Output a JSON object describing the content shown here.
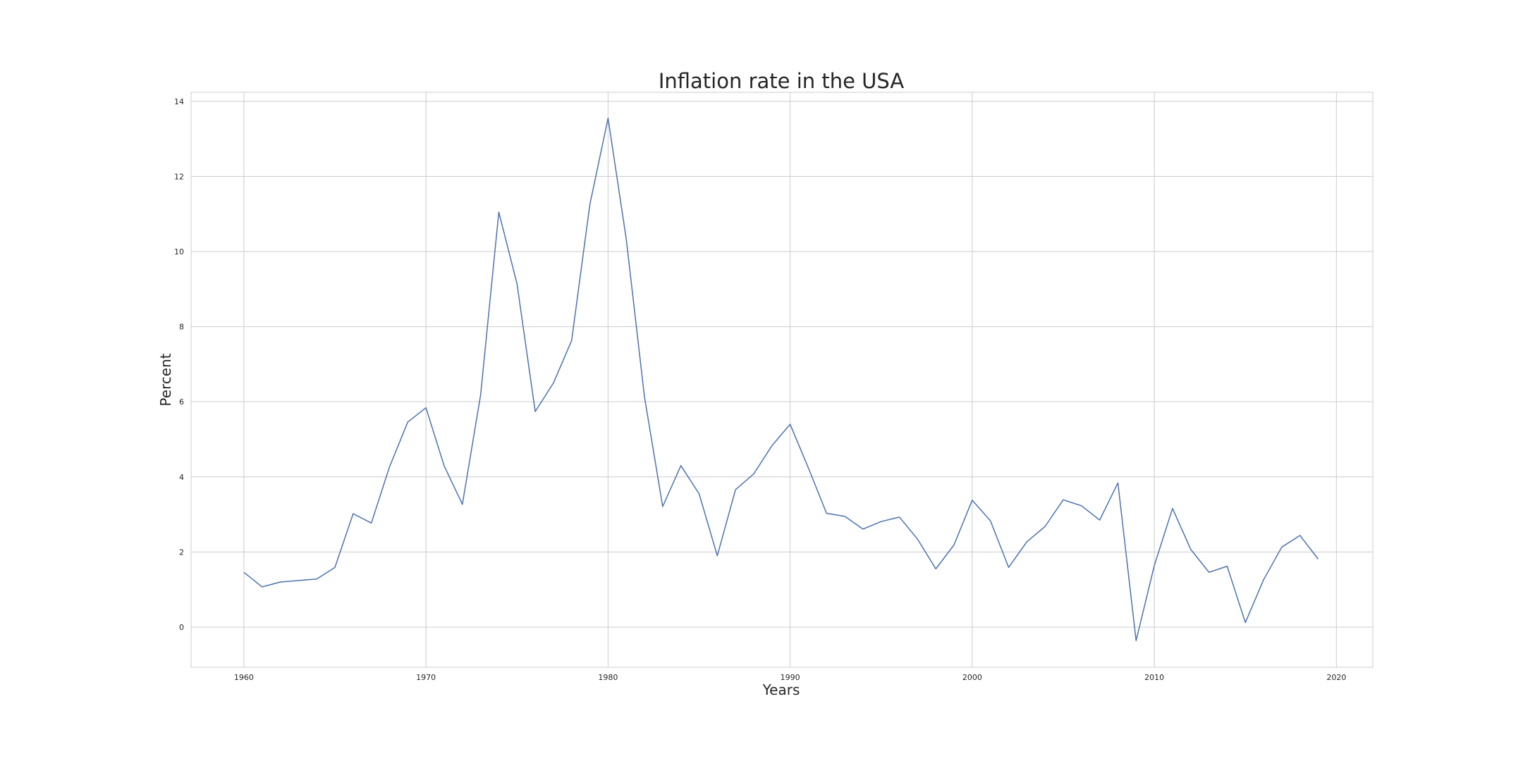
{
  "chart_data": {
    "type": "line",
    "title": "Inflation rate in the USA",
    "xlabel": "Years",
    "ylabel": "Percent",
    "xlim": [
      1957.1,
      2022.0
    ],
    "ylim": [
      -1.07,
      14.24
    ],
    "xticks": [
      1960,
      1970,
      1980,
      1990,
      2000,
      2010,
      2020
    ],
    "yticks": [
      0,
      2,
      4,
      6,
      8,
      10,
      12,
      14
    ],
    "grid": true,
    "line_color": "#4c72b0",
    "grid_color": "#cccccc",
    "series": [
      {
        "x": [
          1960,
          1961,
          1962,
          1963,
          1964,
          1965,
          1966,
          1967,
          1968,
          1969,
          1970,
          1971,
          1972,
          1973,
          1974,
          1975,
          1976,
          1977,
          1978,
          1979,
          1980,
          1981,
          1982,
          1983,
          1984,
          1985,
          1986,
          1987,
          1988,
          1989,
          1990,
          1991,
          1992,
          1993,
          1994,
          1995,
          1996,
          1997,
          1998,
          1999,
          2000,
          2001,
          2002,
          2003,
          2004,
          2005,
          2006,
          2007,
          2008,
          2009,
          2010,
          2011,
          2012,
          2013,
          2014,
          2015,
          2016,
          2017,
          2018,
          2019
        ],
        "values": [
          1.46,
          1.07,
          1.2,
          1.24,
          1.28,
          1.59,
          3.02,
          2.77,
          4.27,
          5.46,
          5.84,
          4.29,
          3.27,
          6.18,
          11.05,
          9.14,
          5.74,
          6.5,
          7.63,
          11.25,
          13.55,
          10.33,
          6.13,
          3.21,
          4.3,
          3.55,
          1.9,
          3.66,
          4.08,
          4.83,
          5.4,
          4.24,
          3.03,
          2.95,
          2.61,
          2.81,
          2.93,
          2.34,
          1.55,
          2.19,
          3.38,
          2.83,
          1.59,
          2.27,
          2.68,
          3.39,
          3.23,
          2.85,
          3.84,
          -0.36,
          1.64,
          3.16,
          2.07,
          1.46,
          1.62,
          0.12,
          1.26,
          2.13,
          2.44,
          1.81
        ]
      }
    ]
  }
}
